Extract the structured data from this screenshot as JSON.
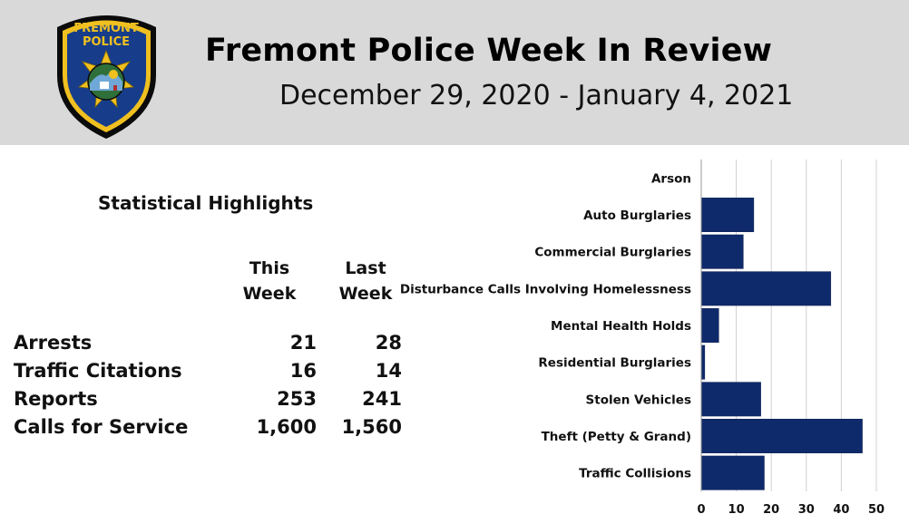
{
  "header": {
    "title": "Fremont Police Week In Review",
    "subtitle": "December 29, 2020 - January 4, 2021",
    "badge_text": "FREMONT POLICE"
  },
  "highlights": {
    "title": "Statistical Highlights",
    "col_this": "This\nWeek",
    "col_last": "Last\nWeek",
    "rows": [
      {
        "label": "Arrests",
        "this_week": "21",
        "last_week": "28"
      },
      {
        "label": "Traffic Citations",
        "this_week": "16",
        "last_week": "14"
      },
      {
        "label": "Reports",
        "this_week": "253",
        "last_week": "241"
      },
      {
        "label": "Calls for Service",
        "this_week": "1,600",
        "last_week": "1,560"
      }
    ]
  },
  "colors": {
    "bar": "#0f2a6b",
    "header_bg": "#d9d9d9",
    "badge_blue": "#173d8a",
    "badge_gold": "#f0c020"
  },
  "chart_data": {
    "type": "bar",
    "orientation": "horizontal",
    "categories": [
      "Arson",
      "Auto Burglaries",
      "Commercial Burglaries",
      "Disturbance Calls Involving Homelessness",
      "Mental Health Holds",
      "Residential Burglaries",
      "Stolen Vehicles",
      "Theft (Petty & Grand)",
      "Traffic Collisions"
    ],
    "values": [
      0,
      15,
      12,
      37,
      5,
      1,
      17,
      46,
      18
    ],
    "xlim": [
      0,
      50
    ],
    "xticks": [
      0,
      10,
      20,
      30,
      40,
      50
    ],
    "title": "",
    "xlabel": "",
    "ylabel": "",
    "grid": "vertical"
  }
}
